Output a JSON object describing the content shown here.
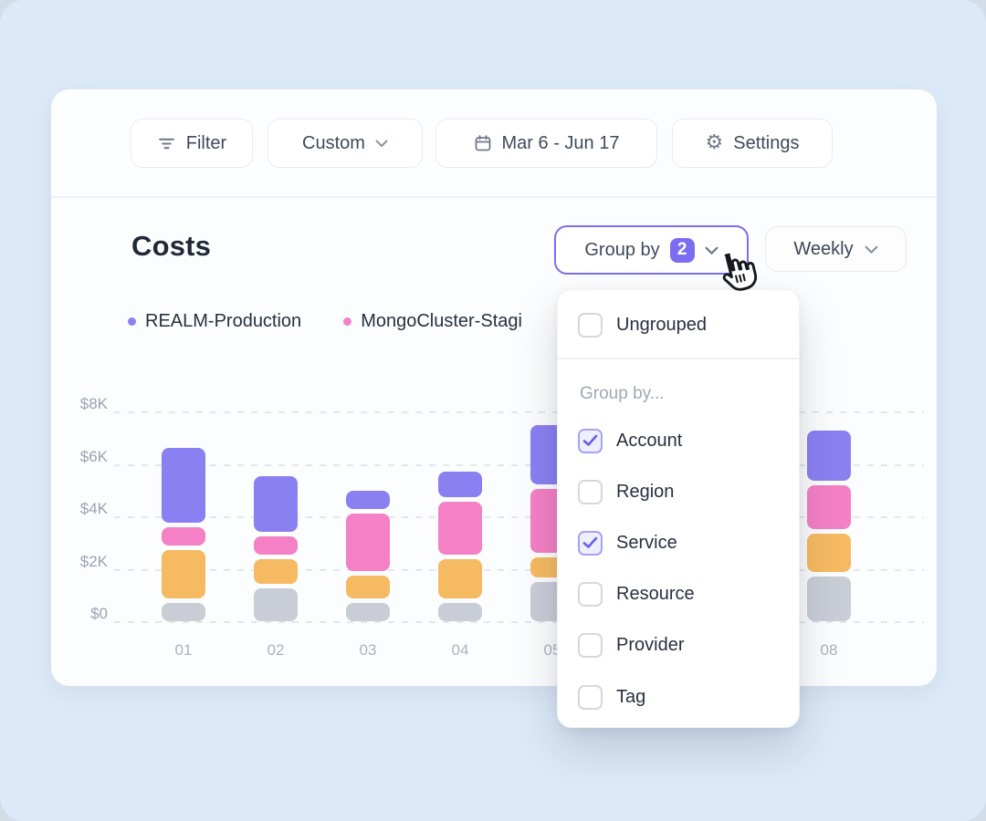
{
  "colors": {
    "page_bg": "#dce9f8",
    "card_bg": "#fcfdfe",
    "accent_purple": "#7b6df0",
    "bar_purple": "#8b80f2",
    "bar_pink": "#f480c5",
    "bar_orange": "#f6ba62",
    "bar_gray": "#c9cdd6"
  },
  "toolbar": {
    "filter_label": "Filter",
    "custom_label": "Custom",
    "date_range": "Mar 6 - Jun 17",
    "settings_label": "Settings"
  },
  "header": {
    "title": "Costs"
  },
  "controls": {
    "group_by_label": "Group by",
    "group_by_badge": "2",
    "period_label": "Weekly"
  },
  "legend": {
    "items": [
      {
        "label": "REALM-Production",
        "color": "#8b80f2"
      },
      {
        "label": "MongoCluster-Stagi",
        "color": "#f480c5"
      }
    ]
  },
  "menu": {
    "ungrouped": {
      "label": "Ungrouped",
      "checked": false
    },
    "section_label": "Group by...",
    "options": [
      {
        "label": "Account",
        "checked": true
      },
      {
        "label": "Region",
        "checked": false
      },
      {
        "label": "Service",
        "checked": true
      },
      {
        "label": "Resource",
        "checked": false
      },
      {
        "label": "Provider",
        "checked": false
      },
      {
        "label": "Tag",
        "checked": false
      }
    ]
  },
  "chart_data": {
    "type": "bar",
    "stacked": true,
    "title": "Costs",
    "categories": [
      "01",
      "02",
      "03",
      "04",
      "05",
      "",
      "",
      "08"
    ],
    "series": [
      {
        "name": "unlabeled-gray",
        "color": "#c9cdd6",
        "values": [
          0.7,
          1.25,
          0.7,
          0.7,
          1.5,
          null,
          null,
          1.7
        ]
      },
      {
        "name": "unlabeled-orange",
        "color": "#f6ba62",
        "values": [
          1.85,
          0.95,
          0.85,
          1.5,
          0.75,
          null,
          null,
          1.45
        ]
      },
      {
        "name": "MongoCluster-Stagi",
        "color": "#f480c5",
        "values": [
          0.7,
          0.7,
          2.2,
          2.0,
          2.45,
          null,
          null,
          1.7
        ]
      },
      {
        "name": "REALM-Production",
        "color": "#8b80f2",
        "values": [
          2.85,
          2.1,
          0.7,
          1.0,
          2.25,
          null,
          null,
          1.9
        ]
      }
    ],
    "units": "USD thousands",
    "y_ticks": [
      "$0",
      "$2K",
      "$4K",
      "$6K",
      "$8K"
    ],
    "ylim": [
      0,
      8
    ],
    "gridlines": "dashed",
    "legend_position": "top-left",
    "note": "bar slots 6 and 7 are fully covered by the open Group by menu"
  }
}
